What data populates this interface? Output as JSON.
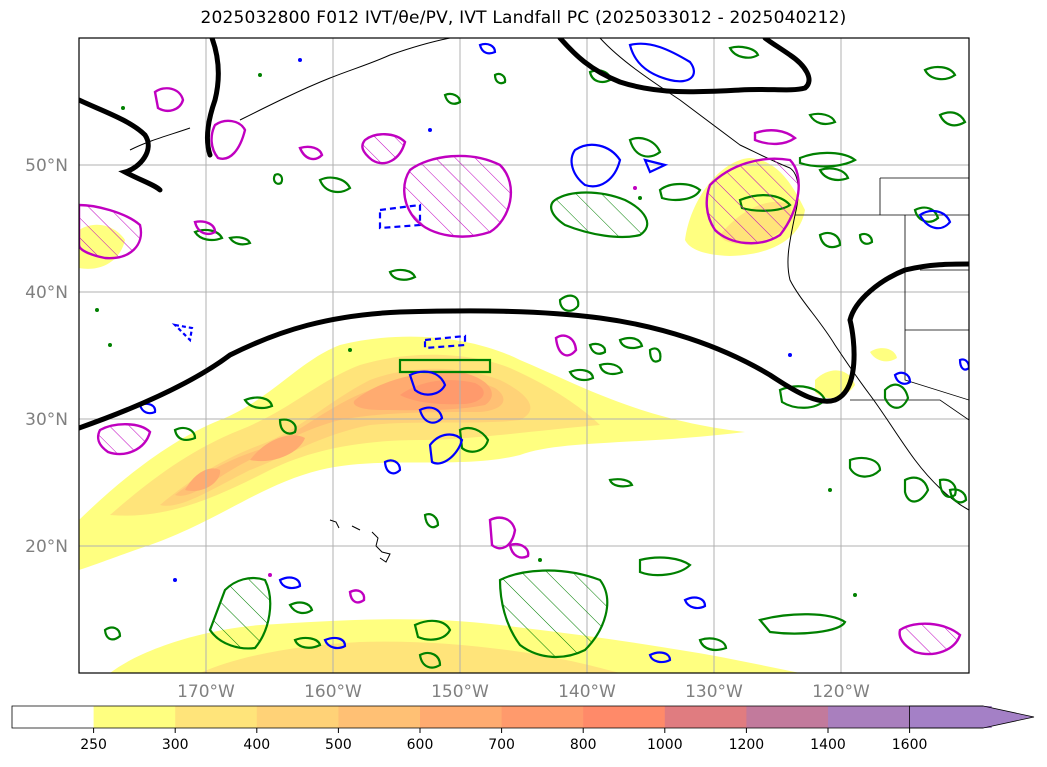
{
  "title": "2025032800 F012 IVT/θe/PV, IVT Landfall PC (2025033012 - 2025040212)",
  "map": {
    "projection": "PlateCarree",
    "lon_range": [
      -180,
      -110
    ],
    "lat_range": [
      10,
      60
    ],
    "lat_labels": [
      "50°N",
      "40°N",
      "30°N",
      "20°N"
    ],
    "lon_labels": [
      "170°W",
      "160°W",
      "150°W",
      "140°W",
      "130°W",
      "120°W"
    ]
  },
  "colorbar": {
    "ticks": [
      "250",
      "300",
      "400",
      "500",
      "600",
      "700",
      "800",
      "1000",
      "1200",
      "1400",
      "1600"
    ],
    "colors": [
      "#ffffff",
      "#ffff80",
      "#ffe47a",
      "#ffd277",
      "#ffc074",
      "#ffab70",
      "#ff9a6c",
      "#ff8a69",
      "#e07c80",
      "#c27a9c",
      "#a97fbe",
      "#a480c6"
    ],
    "extend": "max"
  },
  "legend_colors": {
    "thetae_contour": "#008000",
    "pv_contour": "#0000ff",
    "landfall_pc_contour": "#c000c0",
    "ivt_threshold_line": "#000000"
  }
}
